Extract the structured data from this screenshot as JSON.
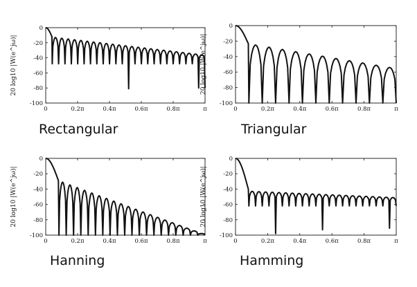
{
  "chart_data": [
    {
      "type": "line",
      "caption": "Rectangular",
      "ylabel": "20 log10 |W(e^jω)|",
      "ylim": [
        -100,
        0
      ],
      "xlim": [
        0,
        1
      ],
      "yticks": [
        "0",
        "-20",
        "-40",
        "-60",
        "-80",
        "-100"
      ],
      "xticks": [
        "0",
        "0.2π",
        "0.4π",
        "0.6π",
        "0.8π",
        "π"
      ],
      "mainlobe_null": 0.041,
      "sidelobe_count": 24,
      "sidelobe_peak_start": -13,
      "sidelobe_peak_end": -36,
      "notch_depth": -48,
      "deep_notches": [
        [
          0.52,
          -81
        ],
        [
          0.98,
          -80
        ]
      ]
    },
    {
      "type": "line",
      "caption": "Triangular",
      "ylabel": "20 log10 |W(e^jω)|",
      "ylim": [
        -100,
        0
      ],
      "xlim": [
        0,
        1
      ],
      "yticks": [
        "0",
        "-20",
        "-40",
        "-60",
        "-80",
        "-100"
      ],
      "xticks": [
        "0",
        "0.2π",
        "0.4π",
        "0.6π",
        "0.8π",
        "π"
      ],
      "mainlobe_null": 0.083,
      "sidelobe_count": 11,
      "sidelobe_peak_start": -25,
      "sidelobe_peak_end": -54,
      "notch_depth": -100,
      "deep_notches": []
    },
    {
      "type": "line",
      "caption": "Hanning",
      "ylabel": "20 log10 |W(e^jω)|",
      "ylim": [
        -100,
        0
      ],
      "xlim": [
        0,
        1
      ],
      "yticks": [
        "0",
        "-20",
        "-40",
        "-60",
        "-80",
        "-100"
      ],
      "xticks": [
        "0",
        "0.2π",
        "0.4π",
        "0.6π",
        "0.8π",
        "π"
      ],
      "mainlobe_null": 0.083,
      "sidelobe_count": 20,
      "sidelobe_peak_start": -31,
      "sidelobe_peak_end": -98,
      "notch_depth": -100,
      "deep_notches": []
    },
    {
      "type": "line",
      "caption": "Hamming",
      "ylabel": "20 log10 |W(e^jω)|",
      "ylim": [
        -100,
        0
      ],
      "xlim": [
        0,
        1
      ],
      "yticks": [
        "0",
        "-20",
        "-40",
        "-60",
        "-80",
        "-100"
      ],
      "xticks": [
        "0",
        "0.2π",
        "0.4π",
        "0.6π",
        "0.8π",
        "π"
      ],
      "mainlobe_null": 0.083,
      "sidelobe_count": 22,
      "sidelobe_peak_start": -43,
      "sidelobe_peak_end": -51,
      "notch_depth": -62,
      "deep_notches": [
        [
          0.252,
          -98
        ],
        [
          0.551,
          -93
        ],
        [
          0.974,
          -91
        ]
      ]
    }
  ]
}
